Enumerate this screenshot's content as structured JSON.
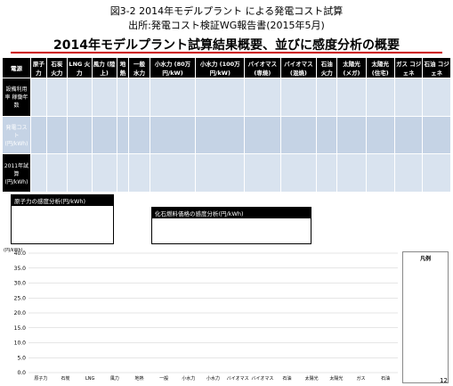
{
  "caption": {
    "line1": "図3-2 2014年モデルプラント による発電コスト試算",
    "line2": "出所:発電コスト検証WG報告書(2015年5月)"
  },
  "title": "2014年モデルプラント試算結果概要、並びに感度分析の概要",
  "table": {
    "headers": [
      "電源",
      "原子力",
      "石炭\n火力",
      "LNG\n火力",
      "風力\n(陸上)",
      "地熱",
      "一般\n水力",
      "小水力\n(80万円/kW)",
      "小水力\n(100万円/kW)",
      "バイオマス\n(専焼)",
      "バイオマス\n(混焼)",
      "石油\n火力",
      "太陽光\n(メガ)",
      "太陽光\n(住宅)",
      "ガス\nコジェネ",
      "石油\nコジェネ"
    ],
    "row_labels": [
      "設備利用率\n稼働年数",
      "発電コスト\n(円/kWh)",
      "2011年試算\n(円/kWh)"
    ]
  },
  "boxes": {
    "nuclear_sensitivity": "原子力の感度分析(円/kWh)",
    "fuel_price_sensitivity": "化石燃料価格の感度分析(円/kWh)"
  },
  "chart_data": {
    "type": "bar",
    "categories": [
      "原子力",
      "石炭\n火力",
      "LNG\n火力",
      "風力\n(陸上)",
      "地熱",
      "一般\n水力",
      "小水力",
      "小水力",
      "バイオマス\n(専焼)",
      "バイオマス\n(混焼)",
      "石油\n火力",
      "太陽光\n(メガ)",
      "太陽光\n(住宅)",
      "ガス\nコジェネ",
      "石油\nコジェネ"
    ],
    "ylim": [
      0,
      40
    ],
    "yticks": [
      "0.0",
      "5.0",
      "10.0",
      "15.0",
      "20.0",
      "25.0",
      "30.0",
      "35.0",
      "40.0"
    ],
    "ylabel": "(円/kWh)",
    "series_colors": [
      "#1f3fbf",
      "#e41c1c",
      "#f59a1a",
      "#39b54a",
      "#c8b58c",
      "#555555"
    ],
    "legend_title": "凡例"
  },
  "page_number": "12"
}
